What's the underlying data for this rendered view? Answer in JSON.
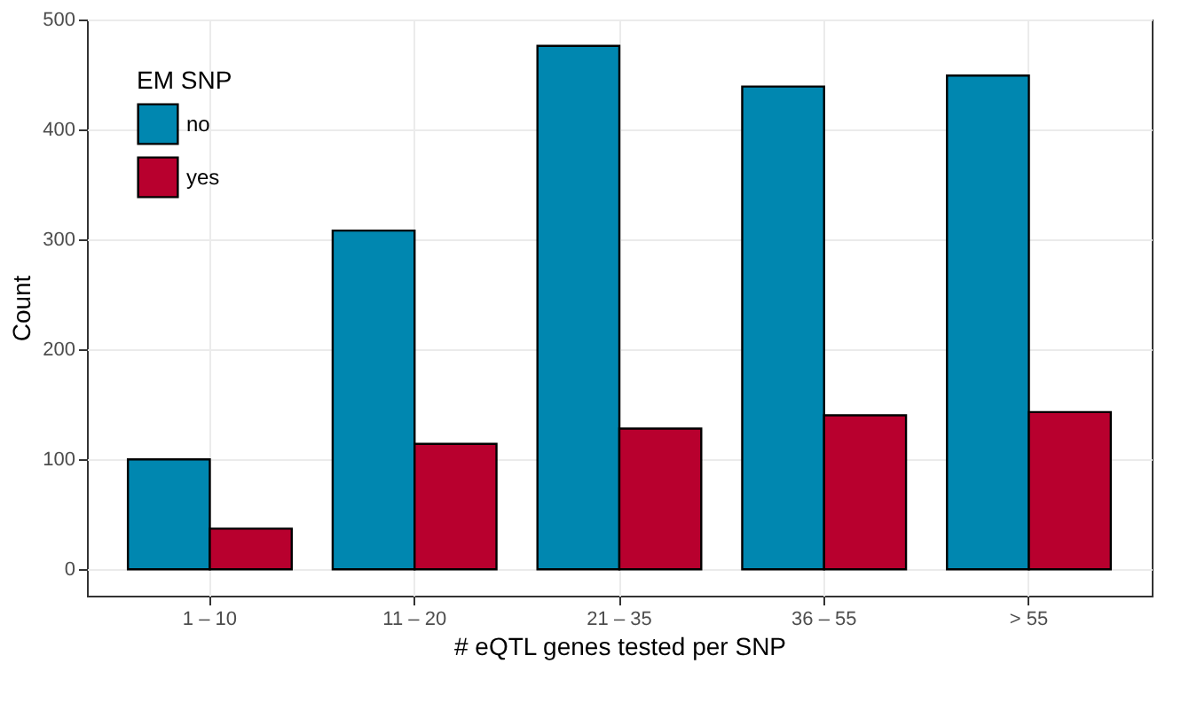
{
  "chart_data": {
    "type": "bar",
    "xlabel": "# eQTL genes tested per SNP",
    "ylabel": "Count",
    "legend_title": "EM SNP",
    "categories": [
      "1 – 10",
      "11 – 20",
      "21 – 35",
      "36 – 55",
      "> 55"
    ],
    "series": [
      {
        "name": "no",
        "color": "#0087b0",
        "values": [
          100,
          308,
          476,
          439,
          449
        ]
      },
      {
        "name": "yes",
        "color": "#b8002e",
        "values": [
          37,
          114,
          128,
          140,
          143
        ]
      }
    ],
    "ylim": [
      -24,
      500
    ],
    "yticks": [
      0,
      100,
      200,
      300,
      400,
      500
    ],
    "grid": true,
    "legend": "top left"
  }
}
